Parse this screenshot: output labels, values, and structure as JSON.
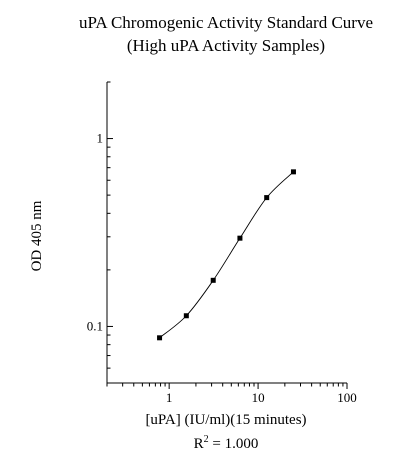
{
  "chart_data": {
    "type": "scatter",
    "title": "uPA Chromogenic Activity Standard Curve",
    "subtitle": "(High uPA Activity Samples)",
    "xlabel": "[uPA] (IU/ml)(15 minutes)",
    "ylabel": "OD 405 nm",
    "x_scale": "log",
    "y_scale": "log",
    "xlim": [
      0.2,
      100
    ],
    "ylim": [
      0.05,
      2
    ],
    "x_ticks": [
      {
        "value": 1,
        "label": "1"
      },
      {
        "value": 10,
        "label": "10"
      },
      {
        "value": 100,
        "label": "100"
      }
    ],
    "y_ticks": [
      {
        "value": 0.1,
        "label": "0.1"
      },
      {
        "value": 1,
        "label": "1"
      }
    ],
    "grid": false,
    "series": [
      {
        "x": [
          0.78,
          1.56,
          3.13,
          6.25,
          12.5,
          25
        ],
        "y": [
          0.087,
          0.114,
          0.176,
          0.295,
          0.485,
          0.665
        ],
        "fit_curve": true
      }
    ],
    "annotation": {
      "text": "R",
      "superscript": "2",
      "suffix": " = 1.000"
    }
  }
}
